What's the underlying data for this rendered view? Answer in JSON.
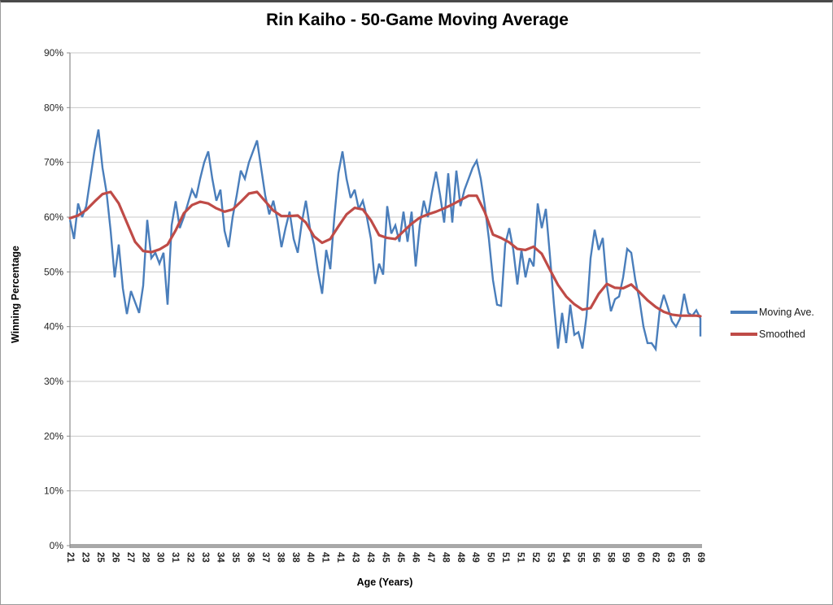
{
  "chart_data": {
    "type": "line",
    "title": "Rin Kaiho - 50-Game Moving Average",
    "xlabel": "Age (Years)",
    "ylabel": "Winning Percentage",
    "ylim": [
      0,
      90
    ],
    "y_tick_step": 10,
    "y_tick_suffix": "%",
    "grid": "horizontal",
    "legend_position": "right",
    "x_tick_labels": [
      "21",
      "23",
      "25",
      "26",
      "27",
      "28",
      "30",
      "31",
      "32",
      "33",
      "34",
      "35",
      "36",
      "37",
      "38",
      "38",
      "40",
      "41",
      "41",
      "43",
      "43",
      "45",
      "45",
      "46",
      "47",
      "48",
      "48",
      "49",
      "50",
      "51",
      "51",
      "52",
      "53",
      "54",
      "55",
      "56",
      "58",
      "59",
      "60",
      "62",
      "63",
      "65",
      "69"
    ],
    "series": [
      {
        "name": "Moving Ave.",
        "color": "#4a7ebb",
        "width": 2.4,
        "join": "miter",
        "x_start_frac": 0,
        "x_step_frac": 0.0064516,
        "values": [
          59.5,
          56,
          62.5,
          60,
          62,
          67,
          72,
          76,
          69,
          64.5,
          57.5,
          49,
          55,
          47,
          42.3,
          46.5,
          44.5,
          42.5,
          47.5,
          59.5,
          52.5,
          53.5,
          51.5,
          53.5,
          44,
          58.5,
          62.9,
          58,
          60,
          62.5,
          65,
          63.5,
          67,
          70,
          72,
          67,
          63,
          65,
          57.5,
          54.5,
          60,
          64,
          68.5,
          67,
          70,
          72,
          74,
          69,
          64,
          60.5,
          63,
          59.5,
          54.5,
          58,
          61,
          56,
          53.5,
          59,
          63,
          58,
          55,
          50,
          46,
          54,
          50.5,
          60,
          68,
          72,
          67,
          63.5,
          65,
          61.5,
          63,
          60,
          56,
          47.8,
          51.5,
          49.5,
          62,
          57,
          58.5,
          55.5,
          61,
          55.5,
          61,
          51,
          58.5,
          63,
          60,
          64.5,
          68.3,
          64,
          59,
          68,
          59,
          68.5,
          62,
          65,
          67,
          69,
          70.3,
          67,
          62,
          56,
          48.5,
          44,
          43.8,
          55,
          58,
          54,
          47.7,
          54,
          49,
          52.5,
          51,
          62.5,
          58,
          61.5,
          53,
          44,
          36,
          42.5,
          37,
          44,
          38.5,
          39,
          36,
          42,
          52.5,
          57.7,
          54,
          56.2,
          47.5,
          42.8,
          45,
          45.5,
          49,
          54.2,
          53.5,
          48.5,
          45,
          40,
          37,
          37,
          35.9,
          43,
          45.8,
          43.5,
          41,
          40,
          41.5,
          46,
          42.5,
          42,
          43,
          41.5,
          38.2
        ]
      },
      {
        "name": "Smoothed",
        "color": "#bf4b47",
        "width": 3.2,
        "join": "round",
        "x_start_frac": 0,
        "x_step_frac": 0.0129032,
        "values": [
          59.8,
          60.3,
          61.3,
          62.8,
          64.2,
          64.6,
          62.5,
          59,
          55.5,
          53.8,
          53.6,
          54.1,
          55,
          57.6,
          60.7,
          62.2,
          62.8,
          62.5,
          61.6,
          61,
          61.4,
          62.8,
          64.3,
          64.6,
          62.9,
          61.2,
          60.2,
          60.2,
          60.3,
          59,
          56.5,
          55.3,
          56,
          58.3,
          60.5,
          61.7,
          61.4,
          59.4,
          56.7,
          56.2,
          56,
          57.4,
          58.8,
          59.9,
          60.5,
          61,
          61.6,
          62.3,
          63.1,
          63.9,
          63.9,
          60.9,
          56.8,
          56.2,
          55.4,
          54.2,
          54,
          54.6,
          53.3,
          50.4,
          47.6,
          45.5,
          44.1,
          43.1,
          43.4,
          46,
          47.8,
          47.1,
          47,
          47.7,
          46.3,
          44.8,
          43.6,
          42.7,
          42.2,
          42,
          42,
          42,
          41.9
        ]
      }
    ],
    "theme": {
      "grid_color": "#c9c9c9",
      "axis_color": "#8c8c8c",
      "axis_bar_color": "#a8a8a8",
      "tick_text_color": "#262626",
      "title_color": "#000000",
      "page_border_color": "#9a9a9a"
    }
  }
}
